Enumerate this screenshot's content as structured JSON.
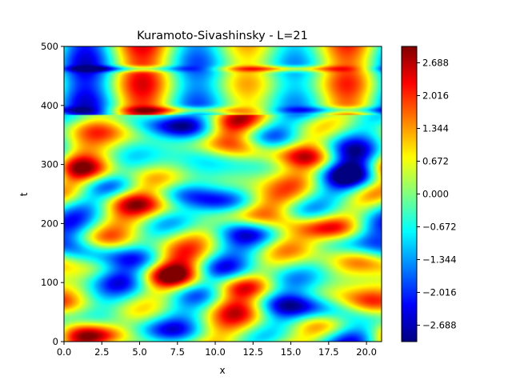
{
  "chart_data": {
    "type": "heatmap",
    "title": "Kuramoto-Sivashinsky - L=21",
    "xlabel": "x",
    "ylabel": "t",
    "xlim": [
      0,
      21
    ],
    "ylim": [
      0,
      500
    ],
    "x_ticks": [
      "0.0",
      "2.5",
      "5.0",
      "7.5",
      "10.0",
      "12.5",
      "15.0",
      "17.5",
      "20.0"
    ],
    "x_tick_values": [
      0,
      2.5,
      5,
      7.5,
      10,
      12.5,
      15,
      17.5,
      20
    ],
    "y_ticks": [
      "0",
      "100",
      "200",
      "300",
      "400",
      "500"
    ],
    "y_tick_values": [
      0,
      100,
      200,
      300,
      400,
      500
    ],
    "colormap": "jet",
    "colorbar": {
      "range": [
        -3.024,
        3.024
      ],
      "ticks": [
        "-2.688",
        "-2.016",
        "-1.344",
        "-0.672",
        "0.000",
        "0.672",
        "1.344",
        "2.016",
        "2.688"
      ],
      "tick_values": [
        -2.688,
        -2.016,
        -1.344,
        -0.672,
        0,
        0.672,
        1.344,
        2.016,
        2.688
      ]
    },
    "field_description": {
      "regimes": [
        {
          "t_range": [
            0,
            385
          ],
          "behavior": "chaotic travelling/merging stripes",
          "amplitude": 2.7
        },
        {
          "t_range": [
            385,
            500
          ],
          "behavior": "stationary cellular pattern",
          "amplitude": 2.0,
          "positive_cells_x": [
            6.2,
            16.5
          ],
          "negative_cells_x": [
            3.0,
            8.8,
            13.3,
            19.5
          ]
        }
      ]
    },
    "grid": false,
    "legend": "none"
  }
}
